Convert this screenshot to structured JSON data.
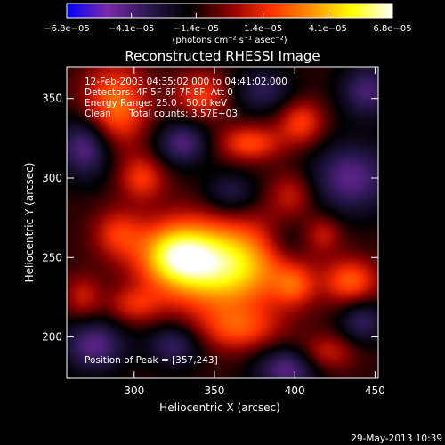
{
  "colorbar": {
    "tick_labels": [
      "−6.8e−05",
      "−4.1e−05",
      "−1.4e−05",
      "1.4e−05",
      "4.1e−05",
      "6.8e−05"
    ],
    "tick_values": [
      -6.8e-05,
      -4.1e-05,
      -1.4e-05,
      1.4e-05,
      4.1e-05,
      6.8e-05
    ],
    "range": [
      -6.8e-05,
      6.8e-05
    ],
    "units_label": "(photons cm⁻² s⁻¹ asec⁻²)"
  },
  "chart_data": {
    "type": "heatmap",
    "title": "Reconstructed RHESSI Image",
    "xlabel": "Heliocentric X (arcsec)",
    "ylabel": "Heliocentric Y (arcsec)",
    "xlim": [
      258,
      452
    ],
    "ylim": [
      174,
      370
    ],
    "xticks": [
      300,
      350,
      400,
      450
    ],
    "yticks": [
      200,
      250,
      300,
      350
    ],
    "colormap": [
      "#0000ff",
      "#7a2aa8",
      "#2a1850",
      "#000000",
      "#8a0000",
      "#ff3000",
      "#ff9000",
      "#ffff00",
      "#ffffff"
    ],
    "blobs": [
      {
        "x": 355,
        "y": 245,
        "sx": 28,
        "sy": 20,
        "amp": 6.8e-05
      },
      {
        "x": 325,
        "y": 252,
        "sx": 16,
        "sy": 14,
        "amp": 4.5e-05
      },
      {
        "x": 288,
        "y": 345,
        "sx": 14,
        "sy": 18,
        "amp": 4.2e-05
      },
      {
        "x": 305,
        "y": 300,
        "sx": 10,
        "sy": 10,
        "amp": 2.8e-05
      },
      {
        "x": 342,
        "y": 352,
        "sx": 12,
        "sy": 10,
        "amp": 3e-05
      },
      {
        "x": 372,
        "y": 322,
        "sx": 14,
        "sy": 8,
        "amp": 3.2e-05
      },
      {
        "x": 404,
        "y": 335,
        "sx": 10,
        "sy": 10,
        "amp": 3e-05
      },
      {
        "x": 398,
        "y": 290,
        "sx": 10,
        "sy": 10,
        "amp": 2e-05
      },
      {
        "x": 435,
        "y": 235,
        "sx": 12,
        "sy": 10,
        "amp": 3.5e-05
      },
      {
        "x": 400,
        "y": 232,
        "sx": 9,
        "sy": 9,
        "amp": 2.4e-05
      },
      {
        "x": 290,
        "y": 265,
        "sx": 11,
        "sy": 11,
        "amp": 2.6e-05
      },
      {
        "x": 268,
        "y": 225,
        "sx": 8,
        "sy": 10,
        "amp": 2e-05
      },
      {
        "x": 365,
        "y": 205,
        "sx": 18,
        "sy": 10,
        "amp": 2.8e-05
      },
      {
        "x": 420,
        "y": 190,
        "sx": 12,
        "sy": 8,
        "amp": 2.2e-05
      },
      {
        "x": 300,
        "y": 220,
        "sx": 12,
        "sy": 8,
        "amp": 2.2e-05
      },
      {
        "x": 418,
        "y": 265,
        "sx": 8,
        "sy": 8,
        "amp": 1.8e-05
      },
      {
        "x": 270,
        "y": 320,
        "sx": 12,
        "sy": 14,
        "amp": -3.5e-05
      },
      {
        "x": 330,
        "y": 322,
        "sx": 12,
        "sy": 10,
        "amp": -3e-05
      },
      {
        "x": 360,
        "y": 290,
        "sx": 12,
        "sy": 10,
        "amp": -2.2e-05
      },
      {
        "x": 435,
        "y": 300,
        "sx": 18,
        "sy": 16,
        "amp": -3.2e-05
      },
      {
        "x": 445,
        "y": 355,
        "sx": 12,
        "sy": 12,
        "amp": -2.8e-05
      },
      {
        "x": 380,
        "y": 355,
        "sx": 14,
        "sy": 10,
        "amp": -2.2e-05
      },
      {
        "x": 275,
        "y": 195,
        "sx": 14,
        "sy": 12,
        "amp": -3.2e-05
      },
      {
        "x": 325,
        "y": 195,
        "sx": 12,
        "sy": 10,
        "amp": -2.6e-05
      },
      {
        "x": 395,
        "y": 180,
        "sx": 14,
        "sy": 10,
        "amp": -3.2e-05
      },
      {
        "x": 442,
        "y": 210,
        "sx": 10,
        "sy": 10,
        "amp": -2.4e-05
      },
      {
        "x": 395,
        "y": 260,
        "sx": 10,
        "sy": 10,
        "amp": -1.6e-05
      }
    ],
    "peak": {
      "x": 357,
      "y": 243
    }
  },
  "annotations": {
    "time": "12-Feb-2003 04:35:02.000 to 04:41:02.000",
    "detectors": "Detectors: 4F 5F 6F 7F 8F, Att 0",
    "energy": "Energy Range: 25.0 - 50.0 keV",
    "clean": "Clean",
    "counts": "Total counts: 3.57E+03",
    "peak_label": "Position of Peak = [357,243]"
  },
  "footer": {
    "timestamp": "29-May-2013 10:39"
  }
}
